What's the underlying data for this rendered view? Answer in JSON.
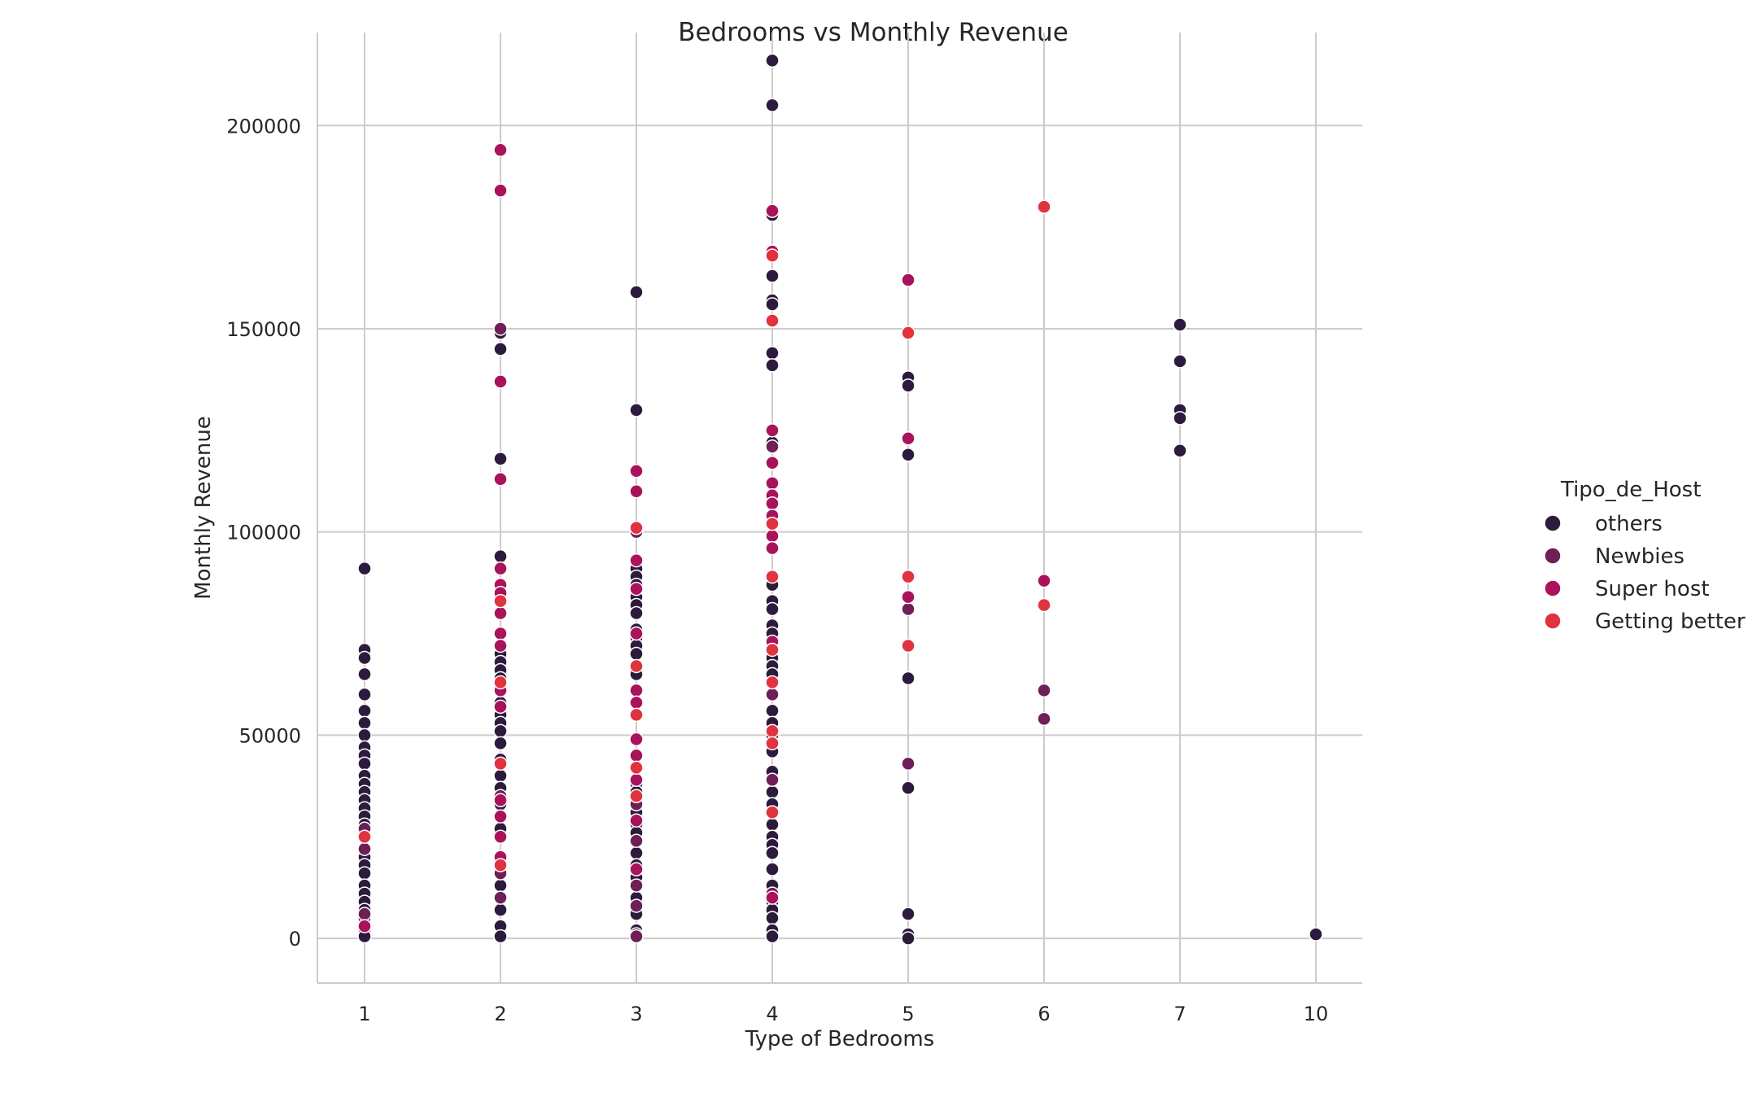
{
  "chart_data": {
    "type": "scatter",
    "title": "Bedrooms vs Monthly Revenue",
    "xlabel": "Type of Bedrooms",
    "ylabel": "Monthly Revenue",
    "x_categories": [
      "1",
      "2",
      "3",
      "4",
      "5",
      "6",
      "7",
      "10"
    ],
    "y_ticks": [
      0,
      50000,
      100000,
      150000,
      200000
    ],
    "y_tick_labels": [
      "0",
      "50000",
      "100000",
      "150000",
      "200000"
    ],
    "ylim": [
      -11000,
      228000
    ],
    "grid": true,
    "legend": {
      "title": "Tipo_de_Host",
      "placement": "right"
    },
    "series": [
      {
        "name": "others",
        "color": "#2d1b3d",
        "points": [
          [
            "1",
            91000
          ],
          [
            "1",
            71000
          ],
          [
            "1",
            69000
          ],
          [
            "1",
            65000
          ],
          [
            "1",
            60000
          ],
          [
            "1",
            56000
          ],
          [
            "1",
            53000
          ],
          [
            "1",
            50000
          ],
          [
            "1",
            47000
          ],
          [
            "1",
            45000
          ],
          [
            "1",
            43000
          ],
          [
            "1",
            40000
          ],
          [
            "1",
            38000
          ],
          [
            "1",
            36000
          ],
          [
            "1",
            34000
          ],
          [
            "1",
            32000
          ],
          [
            "1",
            30000
          ],
          [
            "1",
            28000
          ],
          [
            "1",
            20000
          ],
          [
            "1",
            18000
          ],
          [
            "1",
            16000
          ],
          [
            "1",
            13000
          ],
          [
            "1",
            11000
          ],
          [
            "1",
            9000
          ],
          [
            "1",
            7000
          ],
          [
            "1",
            5000
          ],
          [
            "1",
            2000
          ],
          [
            "1",
            500
          ],
          [
            "2",
            149000
          ],
          [
            "2",
            145000
          ],
          [
            "2",
            118000
          ],
          [
            "2",
            94000
          ],
          [
            "2",
            70000
          ],
          [
            "2",
            68000
          ],
          [
            "2",
            66000
          ],
          [
            "2",
            64000
          ],
          [
            "2",
            58000
          ],
          [
            "2",
            55000
          ],
          [
            "2",
            53000
          ],
          [
            "2",
            51000
          ],
          [
            "2",
            48000
          ],
          [
            "2",
            44000
          ],
          [
            "2",
            40000
          ],
          [
            "2",
            37000
          ],
          [
            "2",
            33000
          ],
          [
            "2",
            30000
          ],
          [
            "2",
            27000
          ],
          [
            "2",
            13000
          ],
          [
            "2",
            7000
          ],
          [
            "2",
            3000
          ],
          [
            "2",
            500
          ],
          [
            "3",
            159000
          ],
          [
            "3",
            130000
          ],
          [
            "3",
            91000
          ],
          [
            "3",
            89000
          ],
          [
            "3",
            87000
          ],
          [
            "3",
            84000
          ],
          [
            "3",
            82000
          ],
          [
            "3",
            80000
          ],
          [
            "3",
            76000
          ],
          [
            "3",
            74000
          ],
          [
            "3",
            72000
          ],
          [
            "3",
            70000
          ],
          [
            "3",
            65000
          ],
          [
            "3",
            38000
          ],
          [
            "3",
            36000
          ],
          [
            "3",
            34000
          ],
          [
            "3",
            31000
          ],
          [
            "3",
            28000
          ],
          [
            "3",
            26000
          ],
          [
            "3",
            21000
          ],
          [
            "3",
            18000
          ],
          [
            "3",
            15000
          ],
          [
            "3",
            10000
          ],
          [
            "3",
            6000
          ],
          [
            "3",
            2000
          ],
          [
            "3",
            1000
          ],
          [
            "4",
            216000
          ],
          [
            "4",
            205000
          ],
          [
            "4",
            178000
          ],
          [
            "4",
            163000
          ],
          [
            "4",
            157000
          ],
          [
            "4",
            156000
          ],
          [
            "4",
            144000
          ],
          [
            "4",
            141000
          ],
          [
            "4",
            122000
          ],
          [
            "4",
            87000
          ],
          [
            "4",
            83000
          ],
          [
            "4",
            81000
          ],
          [
            "4",
            77000
          ],
          [
            "4",
            75000
          ],
          [
            "4",
            69000
          ],
          [
            "4",
            67000
          ],
          [
            "4",
            65000
          ],
          [
            "4",
            56000
          ],
          [
            "4",
            53000
          ],
          [
            "4",
            50000
          ],
          [
            "4",
            46000
          ],
          [
            "4",
            41000
          ],
          [
            "4",
            36000
          ],
          [
            "4",
            33000
          ],
          [
            "4",
            31000
          ],
          [
            "4",
            28000
          ],
          [
            "4",
            25000
          ],
          [
            "4",
            23000
          ],
          [
            "4",
            21000
          ],
          [
            "4",
            17000
          ],
          [
            "4",
            13000
          ],
          [
            "4",
            9000
          ],
          [
            "4",
            7000
          ],
          [
            "4",
            5000
          ],
          [
            "4",
            2000
          ],
          [
            "4",
            500
          ],
          [
            "5",
            138000
          ],
          [
            "5",
            136000
          ],
          [
            "5",
            119000
          ],
          [
            "5",
            64000
          ],
          [
            "5",
            37000
          ],
          [
            "5",
            6000
          ],
          [
            "5",
            1000
          ],
          [
            "5",
            0
          ],
          [
            "7",
            151000
          ],
          [
            "7",
            142000
          ],
          [
            "7",
            130000
          ],
          [
            "7",
            128000
          ],
          [
            "7",
            120000
          ],
          [
            "10",
            1000
          ]
        ]
      },
      {
        "name": "Newbies",
        "color": "#6e1f57",
        "points": [
          [
            "1",
            27000
          ],
          [
            "1",
            22000
          ],
          [
            "1",
            6000
          ],
          [
            "2",
            150000
          ],
          [
            "2",
            35000
          ],
          [
            "2",
            16000
          ],
          [
            "2",
            10000
          ],
          [
            "3",
            100000
          ],
          [
            "3",
            33000
          ],
          [
            "3",
            24000
          ],
          [
            "3",
            13000
          ],
          [
            "3",
            8000
          ],
          [
            "3",
            500
          ],
          [
            "4",
            121000
          ],
          [
            "4",
            112000
          ],
          [
            "4",
            60000
          ],
          [
            "4",
            39000
          ],
          [
            "4",
            11000
          ],
          [
            "5",
            81000
          ],
          [
            "5",
            43000
          ],
          [
            "6",
            61000
          ],
          [
            "6",
            54000
          ]
        ]
      },
      {
        "name": "Super host",
        "color": "#a9135b",
        "points": [
          [
            "1",
            3000
          ],
          [
            "2",
            194000
          ],
          [
            "2",
            184000
          ],
          [
            "2",
            137000
          ],
          [
            "2",
            113000
          ],
          [
            "2",
            91000
          ],
          [
            "2",
            87000
          ],
          [
            "2",
            85000
          ],
          [
            "2",
            80000
          ],
          [
            "2",
            75000
          ],
          [
            "2",
            72000
          ],
          [
            "2",
            61000
          ],
          [
            "2",
            57000
          ],
          [
            "2",
            34000
          ],
          [
            "2",
            30000
          ],
          [
            "2",
            25000
          ],
          [
            "2",
            20000
          ],
          [
            "3",
            115000
          ],
          [
            "3",
            110000
          ],
          [
            "3",
            93000
          ],
          [
            "3",
            86000
          ],
          [
            "3",
            75000
          ],
          [
            "3",
            61000
          ],
          [
            "3",
            58000
          ],
          [
            "3",
            49000
          ],
          [
            "3",
            45000
          ],
          [
            "3",
            39000
          ],
          [
            "3",
            29000
          ],
          [
            "3",
            17000
          ],
          [
            "4",
            179000
          ],
          [
            "4",
            169000
          ],
          [
            "4",
            125000
          ],
          [
            "4",
            117000
          ],
          [
            "4",
            112000
          ],
          [
            "4",
            109000
          ],
          [
            "4",
            107000
          ],
          [
            "4",
            104000
          ],
          [
            "4",
            99000
          ],
          [
            "4",
            96000
          ],
          [
            "4",
            73000
          ],
          [
            "4",
            10000
          ],
          [
            "5",
            162000
          ],
          [
            "5",
            123000
          ],
          [
            "5",
            84000
          ],
          [
            "6",
            88000
          ]
        ]
      },
      {
        "name": "Getting better",
        "color": "#e1323f",
        "points": [
          [
            "1",
            25000
          ],
          [
            "2",
            83000
          ],
          [
            "2",
            63000
          ],
          [
            "2",
            43000
          ],
          [
            "2",
            18000
          ],
          [
            "3",
            101000
          ],
          [
            "3",
            67000
          ],
          [
            "3",
            55000
          ],
          [
            "3",
            42000
          ],
          [
            "3",
            35000
          ],
          [
            "4",
            168000
          ],
          [
            "4",
            152000
          ],
          [
            "4",
            102000
          ],
          [
            "4",
            89000
          ],
          [
            "4",
            71000
          ],
          [
            "4",
            63000
          ],
          [
            "4",
            51000
          ],
          [
            "4",
            48000
          ],
          [
            "4",
            31000
          ],
          [
            "5",
            149000
          ],
          [
            "5",
            89000
          ],
          [
            "5",
            72000
          ],
          [
            "6",
            180000
          ],
          [
            "6",
            82000
          ]
        ]
      }
    ]
  }
}
